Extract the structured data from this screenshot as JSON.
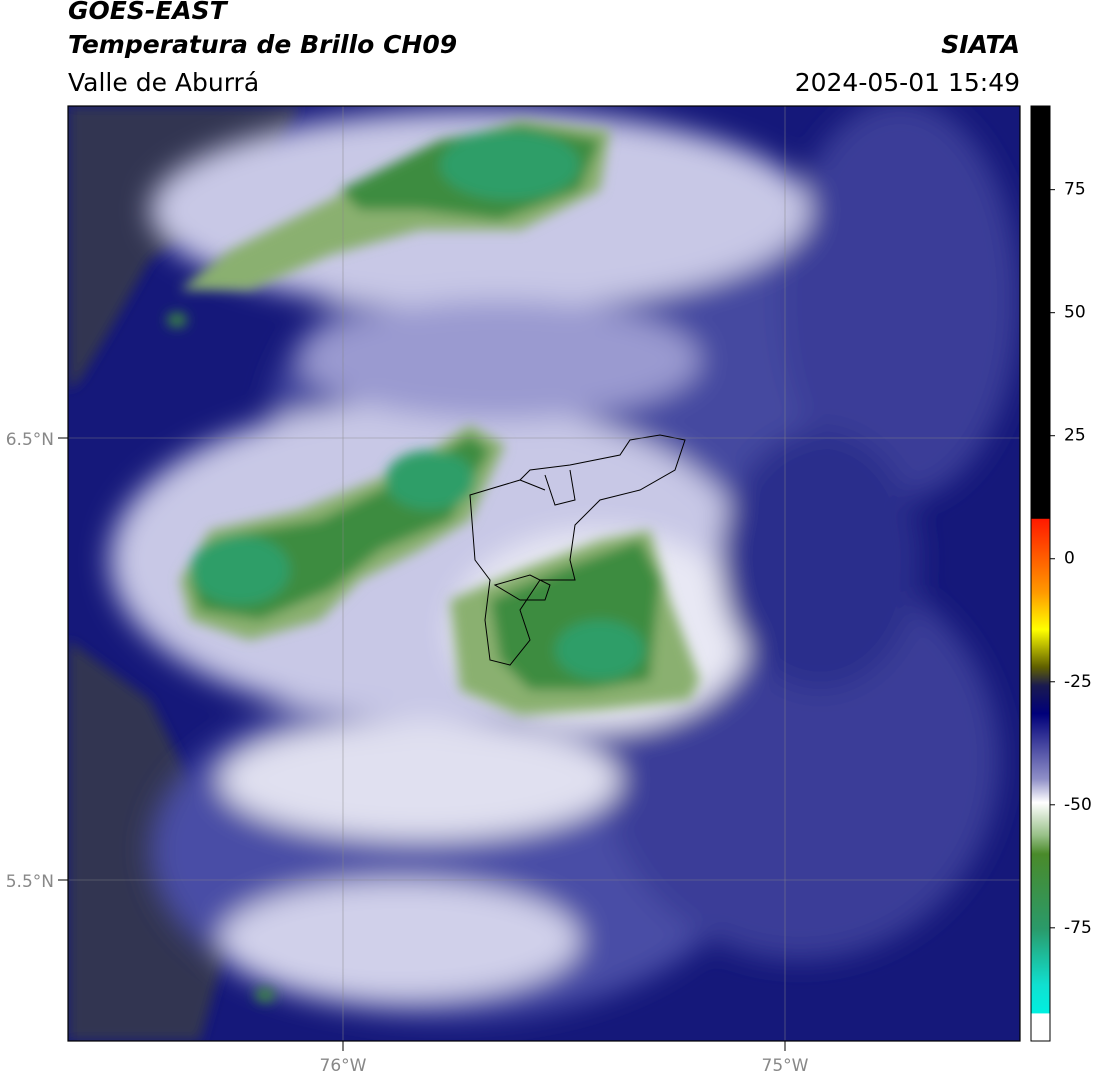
{
  "header": {
    "title": "GOES-EAST",
    "subtitle": "Temperatura de Brillo CH09",
    "region": "Valle de Aburrá",
    "agency": "SIATA",
    "datetime": "2024-05-01 15:49"
  },
  "map": {
    "lat_labels": [
      "6.5°N",
      "5.5°N"
    ],
    "lon_labels": [
      "76°W",
      "75°W"
    ]
  },
  "colorbar": {
    "lim": [
      -98,
      92
    ],
    "ticks": [
      75,
      50,
      25,
      0,
      -25,
      -50,
      -75
    ]
  }
}
